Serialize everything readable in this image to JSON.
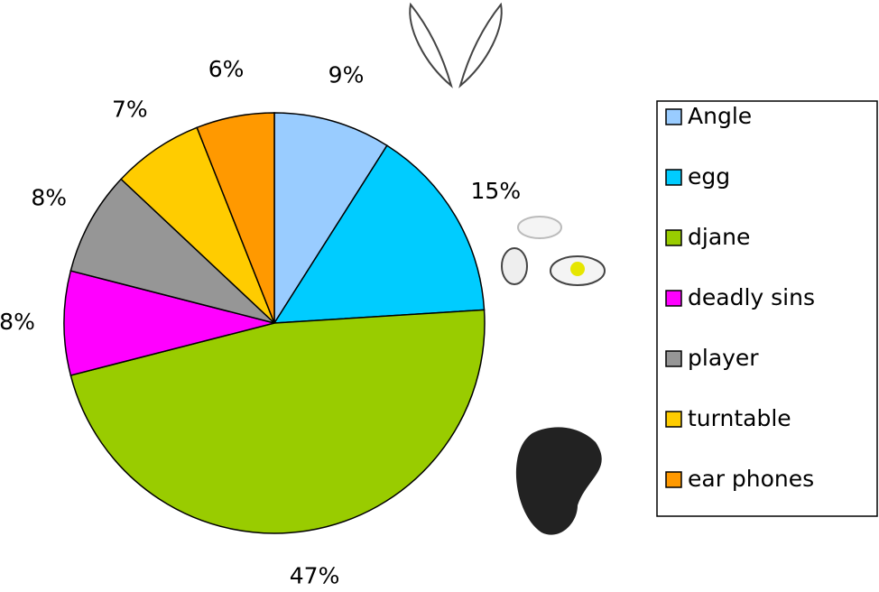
{
  "chart_data": {
    "type": "pie",
    "categories": [
      "Angle",
      "egg",
      "djane",
      "deadly sins",
      "player",
      "turntable",
      "ear phones"
    ],
    "values": [
      9,
      15,
      47,
      8,
      8,
      7,
      6
    ],
    "value_labels": [
      "9%",
      "15%",
      "47%",
      "8%",
      "8%",
      "7%",
      "6%"
    ],
    "colors": [
      "#99ccff",
      "#00ccff",
      "#99cc00",
      "#ff00ff",
      "#969696",
      "#ffcc00",
      "#ff9900"
    ],
    "legend": "right"
  }
}
